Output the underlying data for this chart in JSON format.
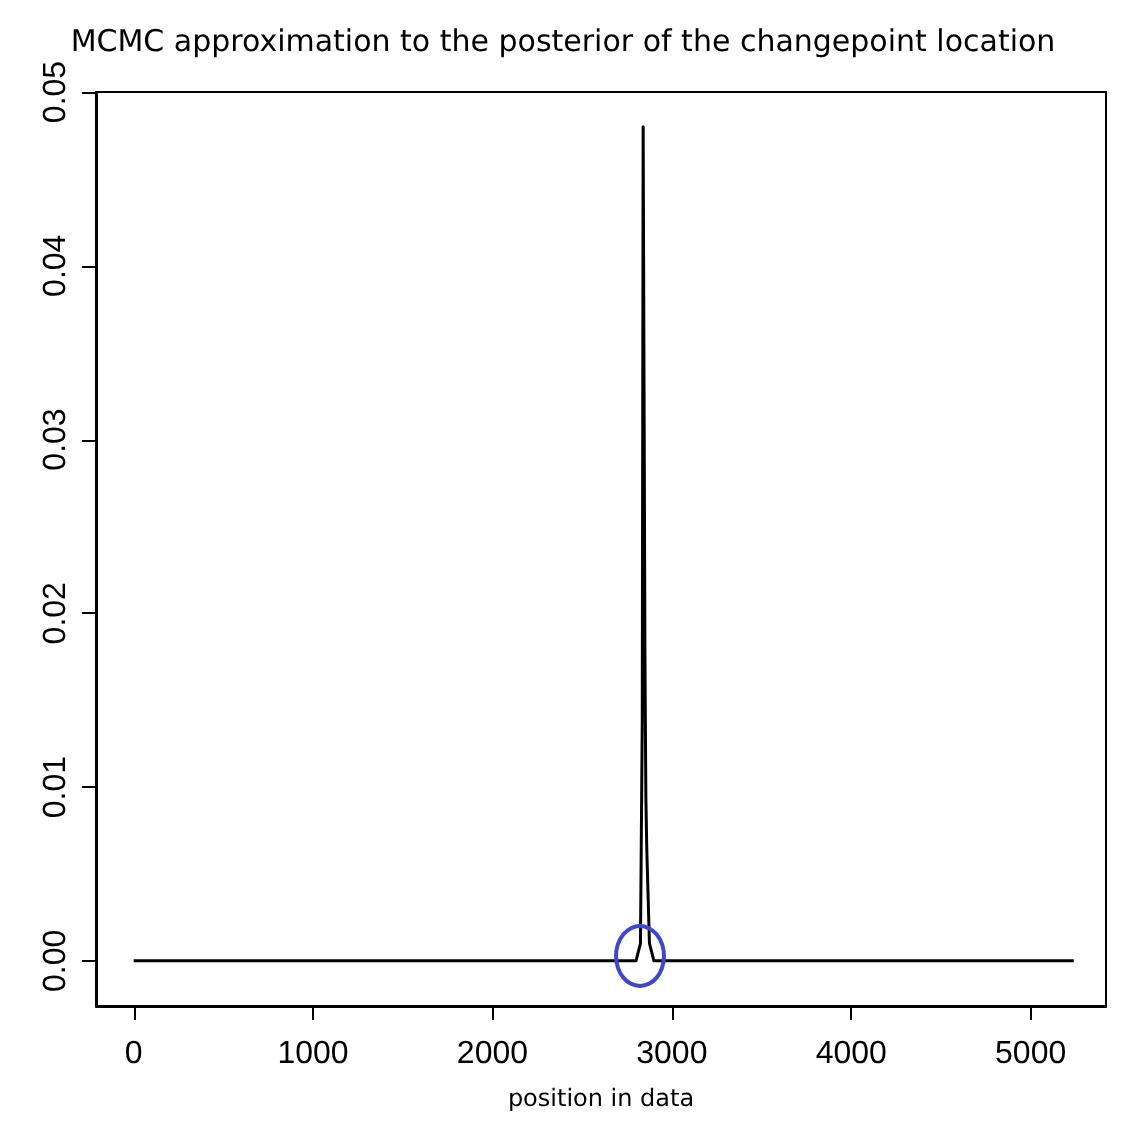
{
  "chart_data": {
    "type": "line",
    "title": "MCMC approximation to the posterior of the changepoint location",
    "xlabel": "position in data",
    "x": [
      0,
      2800,
      2825,
      2835,
      2840,
      2845,
      2850,
      2855,
      2860,
      2875,
      2900,
      5240
    ],
    "series": [
      {
        "color": "#000000",
        "values": [
          0,
          0,
          0.001,
          0.0138,
          0.048,
          0.048,
          0.0175,
          0.0095,
          0.0065,
          0.001,
          0,
          0
        ]
      }
    ],
    "xlim": [
      -210,
      5420
    ],
    "xticks": [
      0,
      1000,
      2000,
      3000,
      4000,
      5000
    ],
    "ylim": [
      -0.0026,
      0.05
    ],
    "yticks": [
      {
        "value": 0,
        "label": "0.00"
      },
      {
        "value": 0.01,
        "label": "0.01"
      },
      {
        "value": 0.02,
        "label": "0.02"
      },
      {
        "value": 0.03,
        "label": "0.03"
      },
      {
        "value": 0.04,
        "label": "0.04"
      },
      {
        "value": 0.05,
        "label": "0.05"
      }
    ],
    "marker": "none",
    "line_style": "solid"
  }
}
